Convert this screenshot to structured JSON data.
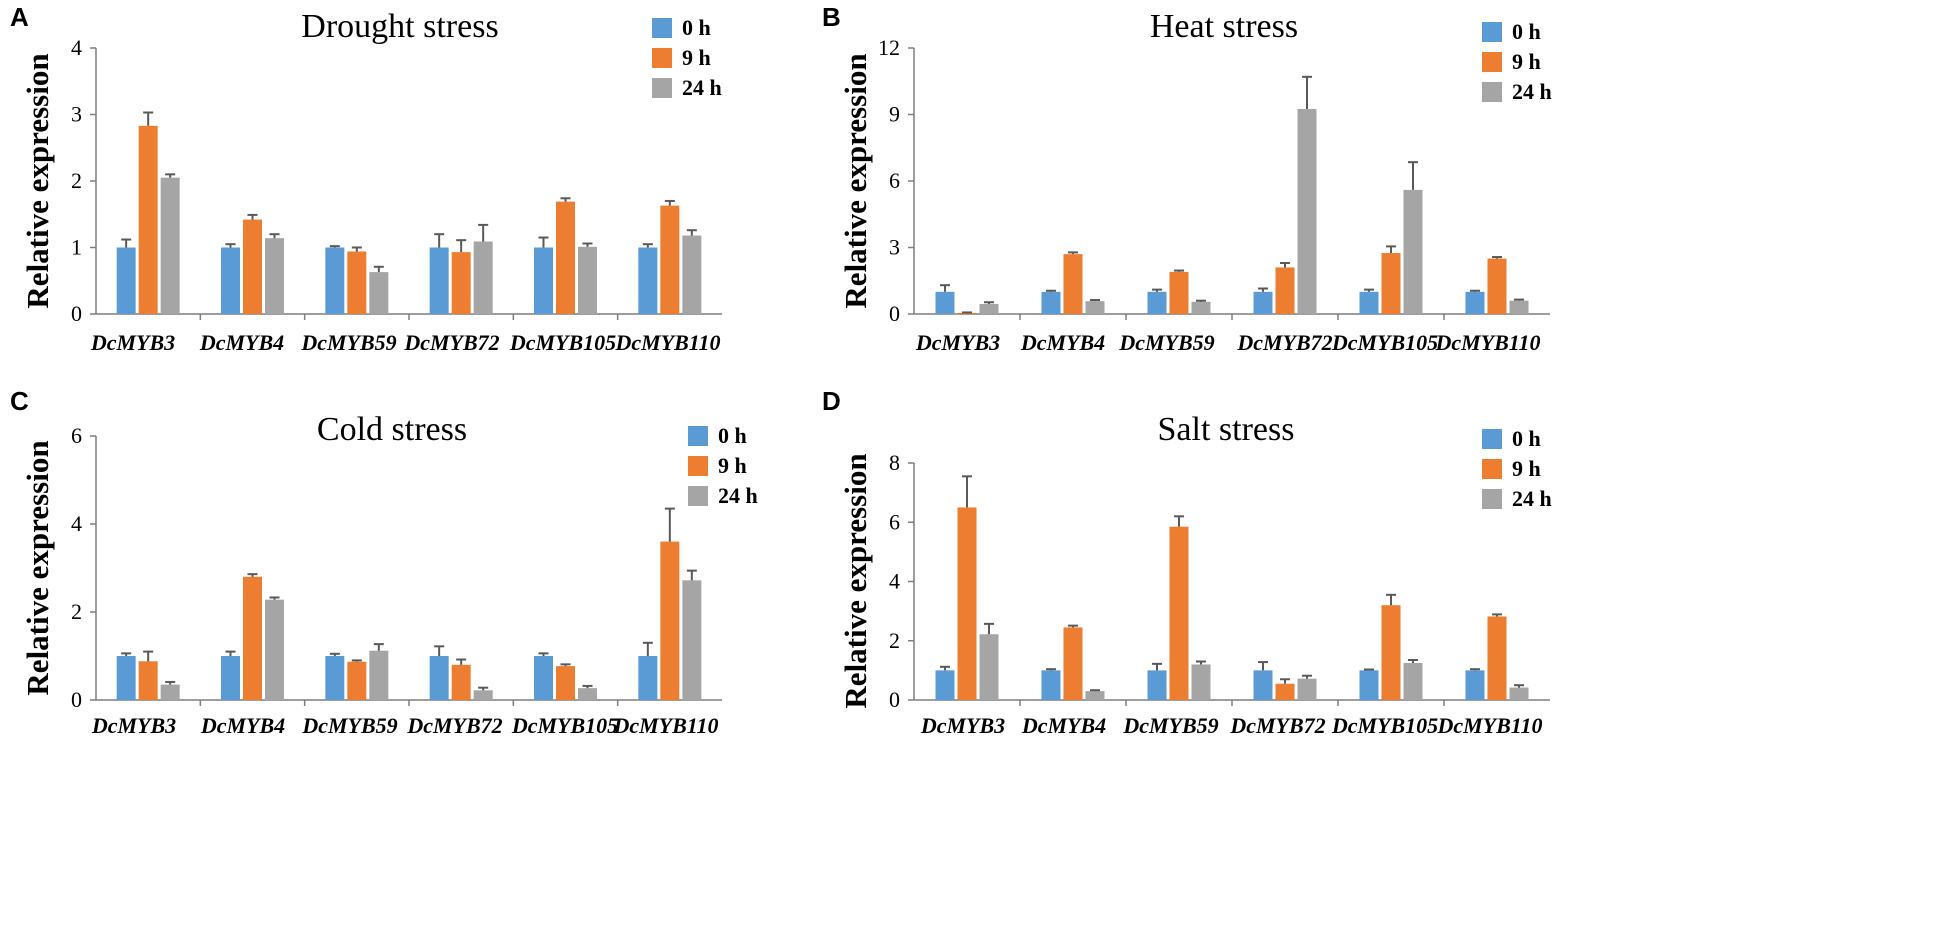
{
  "series_names": [
    "0 h",
    "9 h",
    "24 h"
  ],
  "colors": [
    "#5B9BD5",
    "#ED7D31",
    "#A5A5A5"
  ],
  "chart_data": [
    {
      "panel": "A",
      "type": "bar",
      "title": "Drought stress",
      "ylabel": "Relative expression",
      "xlabel": "",
      "ylim": [
        0,
        4
      ],
      "yticks": [
        0,
        1,
        2,
        3,
        4
      ],
      "categories": [
        "DcMYB3",
        "DcMYB4",
        "DcMYB59",
        "DcMYB72",
        "DcMYB105",
        "DcMYB110"
      ],
      "series": [
        {
          "name": "0 h",
          "values": [
            1.0,
            1.0,
            1.0,
            1.0,
            1.0,
            1.0
          ],
          "errors": [
            0.12,
            0.05,
            0.02,
            0.2,
            0.15,
            0.05
          ]
        },
        {
          "name": "9 h",
          "values": [
            2.83,
            1.42,
            0.94,
            0.93,
            1.69,
            1.63
          ],
          "errors": [
            0.2,
            0.07,
            0.06,
            0.18,
            0.05,
            0.07
          ]
        },
        {
          "name": "24 h",
          "values": [
            2.05,
            1.14,
            0.63,
            1.09,
            1.01,
            1.18
          ],
          "errors": [
            0.05,
            0.06,
            0.08,
            0.25,
            0.05,
            0.08
          ]
        }
      ]
    },
    {
      "panel": "B",
      "type": "bar",
      "title": "Heat stress",
      "ylabel": "Relative expression",
      "xlabel": "",
      "ylim": [
        0,
        12
      ],
      "yticks": [
        0,
        3,
        6,
        9,
        12
      ],
      "categories": [
        "DcMYB3",
        "DcMYB4",
        "DcMYB59",
        "DcMYB72",
        "DcMYB105",
        "DcMYB110"
      ],
      "series": [
        {
          "name": "0 h",
          "values": [
            1.0,
            1.0,
            1.0,
            1.0,
            1.0,
            1.0
          ],
          "errors": [
            0.3,
            0.05,
            0.1,
            0.15,
            0.1,
            0.05
          ]
        },
        {
          "name": "9 h",
          "values": [
            0.05,
            2.7,
            1.9,
            2.1,
            2.75,
            2.5
          ],
          "errors": [
            0.02,
            0.08,
            0.06,
            0.2,
            0.3,
            0.07
          ]
        },
        {
          "name": "24 h",
          "values": [
            0.45,
            0.58,
            0.55,
            9.25,
            5.6,
            0.6
          ],
          "errors": [
            0.08,
            0.05,
            0.05,
            1.45,
            1.25,
            0.05
          ]
        }
      ]
    },
    {
      "panel": "C",
      "type": "bar",
      "title": "Cold stress",
      "ylabel": "Relative expression",
      "xlabel": "",
      "ylim": [
        0,
        6
      ],
      "yticks": [
        0,
        2,
        4,
        6
      ],
      "categories": [
        "DcMYB3",
        "DcMYB4",
        "DcMYB59",
        "DcMYB72",
        "DcMYB105",
        "DcMYB110"
      ],
      "series": [
        {
          "name": "0 h",
          "values": [
            1.0,
            1.0,
            1.0,
            1.0,
            1.0,
            1.0
          ],
          "errors": [
            0.06,
            0.1,
            0.05,
            0.22,
            0.06,
            0.3
          ]
        },
        {
          "name": "9 h",
          "values": [
            0.88,
            2.8,
            0.87,
            0.8,
            0.77,
            3.6
          ],
          "errors": [
            0.22,
            0.06,
            0.03,
            0.12,
            0.04,
            0.75
          ]
        },
        {
          "name": "24 h",
          "values": [
            0.35,
            2.28,
            1.12,
            0.22,
            0.27,
            2.72
          ],
          "errors": [
            0.06,
            0.05,
            0.15,
            0.06,
            0.05,
            0.22
          ]
        }
      ]
    },
    {
      "panel": "D",
      "type": "bar",
      "title": "Salt stress",
      "ylabel": "Relative expression",
      "xlabel": "",
      "ylim": [
        0,
        8
      ],
      "yticks": [
        0,
        2,
        4,
        6,
        8
      ],
      "categories": [
        "DcMYB3",
        "DcMYB4",
        "DcMYB59",
        "DcMYB72",
        "DcMYB105",
        "DcMYB110"
      ],
      "series": [
        {
          "name": "0 h",
          "values": [
            1.0,
            1.0,
            1.0,
            1.0,
            1.0,
            1.0
          ],
          "errors": [
            0.12,
            0.04,
            0.22,
            0.28,
            0.03,
            0.04
          ]
        },
        {
          "name": "9 h",
          "values": [
            6.5,
            2.45,
            5.85,
            0.55,
            3.2,
            2.82
          ],
          "errors": [
            1.05,
            0.06,
            0.35,
            0.15,
            0.35,
            0.07
          ]
        },
        {
          "name": "24 h",
          "values": [
            2.22,
            0.3,
            1.2,
            0.72,
            1.25,
            0.42
          ],
          "errors": [
            0.35,
            0.03,
            0.1,
            0.1,
            0.1,
            0.08
          ]
        }
      ]
    }
  ]
}
